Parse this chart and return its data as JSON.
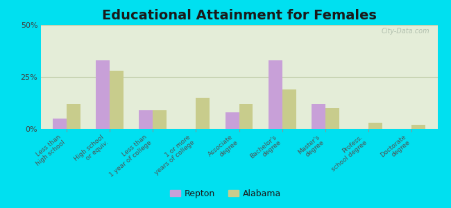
{
  "title": "Educational Attainment for Females",
  "categories": [
    "Less than\nhigh school",
    "High school\nor equiv.",
    "Less than\n1 year of college",
    "1 or more\nyears of college",
    "Associate\ndegree",
    "Bachelor's\ndegree",
    "Master's\ndegree",
    "Profess.\nschool degree",
    "Doctorate\ndegree"
  ],
  "repton": [
    5.0,
    33.0,
    9.0,
    0.0,
    8.0,
    33.0,
    12.0,
    0.0,
    0.0
  ],
  "alabama": [
    12.0,
    28.0,
    9.0,
    15.0,
    12.0,
    19.0,
    10.0,
    3.0,
    2.0
  ],
  "repton_color": "#c8a0d8",
  "alabama_color": "#c8cc8c",
  "background_outer": "#00e0f0",
  "background_inner": "#e4edd8",
  "ylim": [
    0,
    50
  ],
  "yticks": [
    0,
    25,
    50
  ],
  "ytick_labels": [
    "0%",
    "25%",
    "50%"
  ],
  "grid_color": "#c0cca8",
  "title_fontsize": 14,
  "bar_width": 0.32,
  "legend_labels": [
    "Repton",
    "Alabama"
  ]
}
